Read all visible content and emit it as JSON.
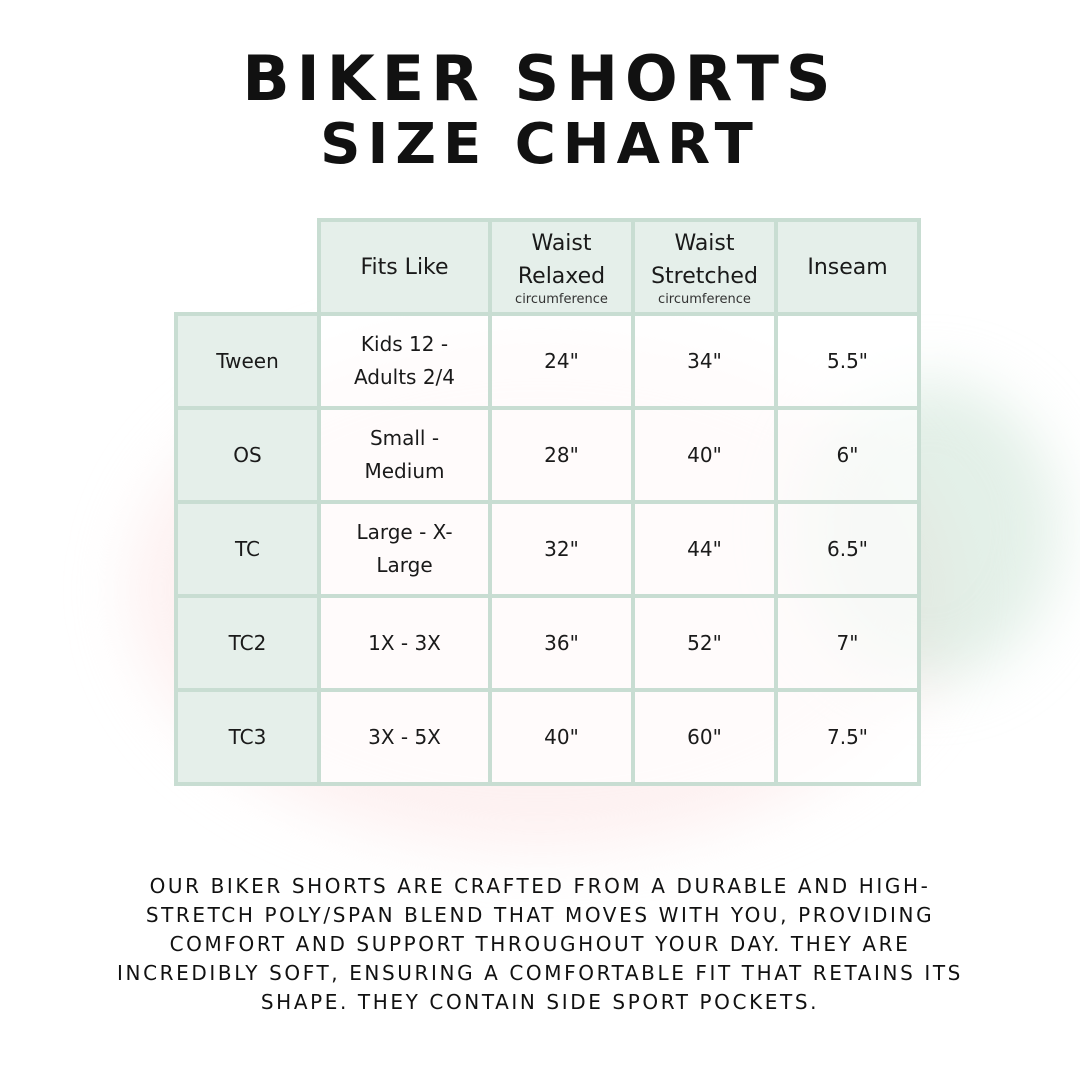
{
  "title": {
    "line1": "BIKER SHORTS",
    "line2": "SIZE CHART"
  },
  "table": {
    "headers": [
      {
        "main": "Fits Like",
        "sub": ""
      },
      {
        "main": "Waist Relaxed",
        "sub": "circumference"
      },
      {
        "main": "Waist Stretched",
        "sub": "circumference"
      },
      {
        "main": "Inseam",
        "sub": ""
      }
    ],
    "rows": [
      {
        "size": "Tween",
        "fits": "Kids 12 - Adults 2/4",
        "relaxed": "24\"",
        "stretched": "34\"",
        "inseam": "5.5\""
      },
      {
        "size": "OS",
        "fits": "Small - Medium",
        "relaxed": "28\"",
        "stretched": "40\"",
        "inseam": "6\""
      },
      {
        "size": "TC",
        "fits": "Large - X-Large",
        "relaxed": "32\"",
        "stretched": "44\"",
        "inseam": "6.5\""
      },
      {
        "size": "TC2",
        "fits": "1X - 3X",
        "relaxed": "36\"",
        "stretched": "52\"",
        "inseam": "7\""
      },
      {
        "size": "TC3",
        "fits": "3X - 5X",
        "relaxed": "40\"",
        "stretched": "60\"",
        "inseam": "7.5\""
      }
    ]
  },
  "description": [
    "Our biker shorts are crafted from a durable and high-",
    "stretch poly/span blend that moves with you, providing",
    "comfort and support throughout your day. They are",
    "incredibly soft, ensuring a comfortable fit that retains its",
    "shape. They contain side sport pockets."
  ],
  "colors": {
    "border": "#c8ddd2",
    "header_bg": "#e5efea",
    "text": "#111111"
  }
}
